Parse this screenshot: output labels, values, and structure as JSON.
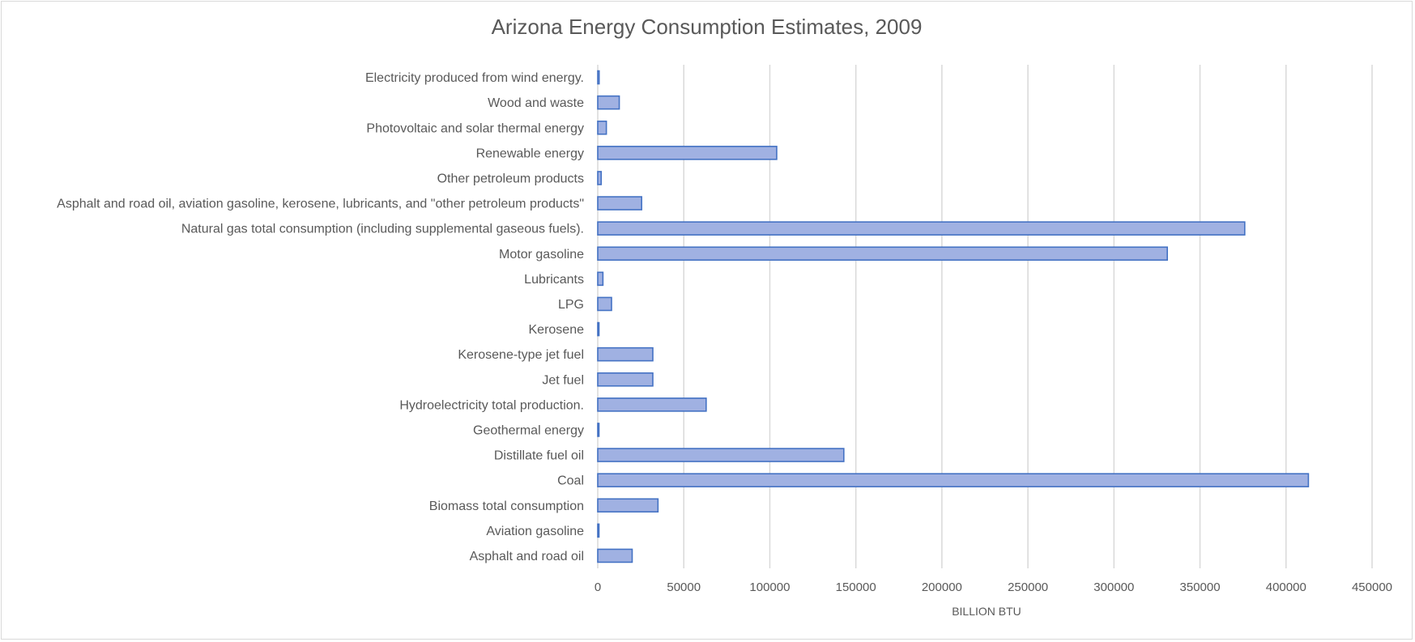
{
  "chart_data": {
    "type": "bar",
    "orientation": "horizontal",
    "title": "Arizona Energy Consumption Estimates, 2009",
    "xlabel": "BILLION BTU",
    "ylabel": "",
    "xlim": [
      0,
      450000
    ],
    "xticks": [
      0,
      50000,
      100000,
      150000,
      200000,
      250000,
      300000,
      350000,
      400000,
      450000
    ],
    "xtick_labels": [
      "0",
      "50000",
      "100000",
      "150000",
      "200000",
      "250000",
      "300000",
      "350000",
      "400000",
      "450000"
    ],
    "grid": "vertical",
    "legend": "none",
    "categories": [
      "Asphalt and road oil",
      "Aviation gasoline",
      "Biomass total consumption",
      "Coal",
      "Distillate fuel oil",
      "Geothermal energy",
      "Hydroelectricity total production.",
      "Jet fuel",
      "Kerosene-type jet fuel",
      "Kerosene",
      "LPG",
      "Lubricants",
      "Motor gasoline",
      "Natural gas total consumption (including supplemental gaseous fuels).",
      "Asphalt and road oil, aviation gasoline, kerosene, lubricants, and \"other petroleum products\"",
      "Other petroleum products",
      "Renewable energy",
      "Photovoltaic and solar thermal energy",
      "Wood and waste",
      "Electricity produced from wind energy."
    ],
    "values": [
      20000,
      700,
      35000,
      413000,
      143000,
      600,
      63000,
      32000,
      32000,
      500,
      8000,
      3000,
      331000,
      376000,
      25500,
      2000,
      104000,
      5000,
      12500,
      800
    ],
    "colors": {
      "bar_fill": "#a0b1e2",
      "bar_stroke": "#4472c4",
      "grid": "#d9d9d9",
      "text": "#595959"
    }
  }
}
